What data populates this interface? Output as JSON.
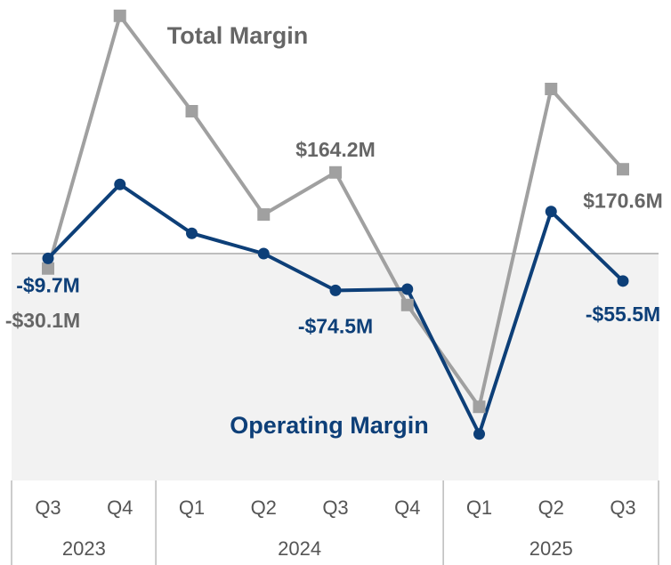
{
  "chart_data": {
    "type": "line",
    "groups": [
      {
        "name": "2023",
        "categories": [
          "Q3",
          "Q4"
        ]
      },
      {
        "name": "2024",
        "categories": [
          "Q1",
          "Q2",
          "Q3",
          "Q4"
        ]
      },
      {
        "name": "2025",
        "categories": [
          "Q1",
          "Q2",
          "Q3"
        ]
      }
    ],
    "series": [
      {
        "name": "Total Margin",
        "color": "#a0a0a0",
        "label_color": "#666666",
        "marker": "square",
        "values": [
          -30.1,
          481,
          288,
          79,
          164.2,
          -104,
          -310,
          333,
          170.6
        ],
        "value_labels": [
          "-$30.1M",
          null,
          null,
          null,
          "$164.2M",
          null,
          null,
          null,
          "$170.6M"
        ]
      },
      {
        "name": "Operating Margin",
        "color": "#0d3f78",
        "label_color": "#0d3f78",
        "marker": "circle",
        "values": [
          -9.7,
          140,
          41,
          0,
          -74.5,
          -72,
          -365,
          85,
          -55.5
        ],
        "value_labels": [
          "-$9.7M",
          null,
          null,
          null,
          "-$74.5M",
          null,
          null,
          null,
          "-$55.5M"
        ]
      }
    ],
    "ylim": [
      -459,
      513
    ]
  }
}
